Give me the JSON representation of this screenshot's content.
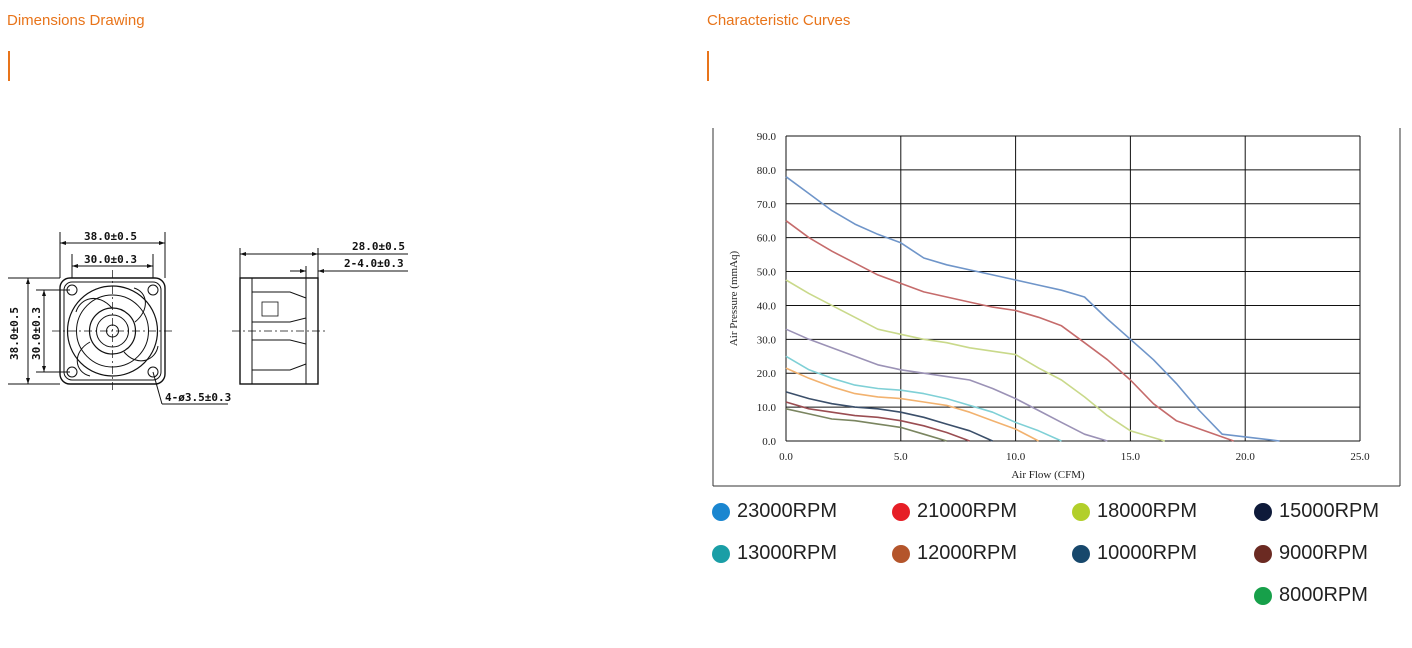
{
  "headers": {
    "dimensions": "Dimensions Drawing",
    "curves": "Characteristic Curves"
  },
  "colors": {
    "accent": "#e8741a"
  },
  "drawing": {
    "labels": {
      "front_width_outer": "38.0±0.5",
      "front_width_inner": "30.0±0.3",
      "front_height_outer": "38.0±0.5",
      "front_height_inner": "30.0±0.3",
      "hole": "4-ø3.5±0.3",
      "side_depth": "28.0±0.5",
      "side_flange": "2-4.0±0.3"
    }
  },
  "chart_data": {
    "type": "line",
    "xlabel": "Air Flow (CFM)",
    "ylabel": "Air Pressure (mmAq)",
    "xlim": [
      0,
      25
    ],
    "ylim": [
      0,
      90
    ],
    "xticks": [
      "0.0",
      "5.0",
      "10.0",
      "15.0",
      "20.0",
      "25.0"
    ],
    "yticks": [
      "0.0",
      "10.0",
      "20.0",
      "30.0",
      "40.0",
      "50.0",
      "60.0",
      "70.0",
      "80.0",
      "90.0"
    ],
    "grid": true,
    "series": [
      {
        "name": "23000RPM",
        "color": "#6f95c9",
        "points": [
          [
            0,
            78
          ],
          [
            1,
            73
          ],
          [
            2,
            68
          ],
          [
            3,
            64
          ],
          [
            4,
            61
          ],
          [
            5,
            58.5
          ],
          [
            6,
            54
          ],
          [
            7,
            52
          ],
          [
            8,
            50.5
          ],
          [
            9,
            49
          ],
          [
            10,
            47.5
          ],
          [
            11,
            46
          ],
          [
            12,
            44.5
          ],
          [
            13,
            42.5
          ],
          [
            14,
            36
          ],
          [
            15,
            30
          ],
          [
            16,
            24
          ],
          [
            17,
            17
          ],
          [
            18,
            9
          ],
          [
            19,
            2
          ],
          [
            21.5,
            0
          ]
        ]
      },
      {
        "name": "21000RPM",
        "color": "#c56b6b",
        "points": [
          [
            0,
            65
          ],
          [
            1,
            60
          ],
          [
            2,
            56
          ],
          [
            3,
            52.5
          ],
          [
            4,
            49
          ],
          [
            5,
            46.5
          ],
          [
            6,
            44
          ],
          [
            7,
            42.5
          ],
          [
            8,
            41
          ],
          [
            9,
            39.5
          ],
          [
            10,
            38.5
          ],
          [
            11,
            36.5
          ],
          [
            12,
            34
          ],
          [
            13,
            29
          ],
          [
            14,
            24
          ],
          [
            15,
            18
          ],
          [
            16,
            11
          ],
          [
            17,
            6
          ],
          [
            19.5,
            0
          ]
        ]
      },
      {
        "name": "18000RPM",
        "color": "#c9d98a",
        "points": [
          [
            0,
            47.5
          ],
          [
            1,
            43.5
          ],
          [
            2,
            40
          ],
          [
            3,
            36.5
          ],
          [
            4,
            33
          ],
          [
            5,
            31.5
          ],
          [
            6,
            30
          ],
          [
            7,
            29
          ],
          [
            8,
            27.5
          ],
          [
            9,
            26.5
          ],
          [
            10,
            25.5
          ],
          [
            11,
            21.5
          ],
          [
            12,
            18
          ],
          [
            13,
            13
          ],
          [
            14,
            7.5
          ],
          [
            15,
            3
          ],
          [
            16.5,
            0
          ]
        ]
      },
      {
        "name": "15000RPM",
        "color": "#9b92b6",
        "points": [
          [
            0,
            33
          ],
          [
            1,
            30
          ],
          [
            2,
            27.5
          ],
          [
            3,
            25
          ],
          [
            4,
            22.5
          ],
          [
            5,
            21
          ],
          [
            6,
            20
          ],
          [
            7,
            19
          ],
          [
            8,
            18
          ],
          [
            9,
            15.5
          ],
          [
            10,
            12.5
          ],
          [
            11,
            9
          ],
          [
            12,
            5.5
          ],
          [
            13,
            2
          ],
          [
            14,
            0
          ]
        ]
      },
      {
        "name": "13000RPM",
        "color": "#7fd0d6",
        "points": [
          [
            0,
            25
          ],
          [
            1,
            21
          ],
          [
            2,
            18.5
          ],
          [
            3,
            16.5
          ],
          [
            4,
            15.5
          ],
          [
            5,
            15
          ],
          [
            6,
            14
          ],
          [
            7,
            12.5
          ],
          [
            8,
            10.5
          ],
          [
            9,
            8.5
          ],
          [
            10,
            5.5
          ],
          [
            11,
            3
          ],
          [
            12,
            0
          ]
        ]
      },
      {
        "name": "12000RPM",
        "color": "#f2b26f",
        "points": [
          [
            0,
            21.5
          ],
          [
            1,
            18.5
          ],
          [
            2,
            16
          ],
          [
            3,
            14
          ],
          [
            4,
            13
          ],
          [
            5,
            12.5
          ],
          [
            6,
            11.5
          ],
          [
            7,
            10.5
          ],
          [
            8,
            8.5
          ],
          [
            9,
            6
          ],
          [
            10,
            3.5
          ],
          [
            11,
            0
          ]
        ]
      },
      {
        "name": "10000RPM",
        "color": "#3b4f6a",
        "points": [
          [
            0,
            14.5
          ],
          [
            1,
            12.5
          ],
          [
            2,
            11
          ],
          [
            3,
            10
          ],
          [
            4,
            9.5
          ],
          [
            5,
            8.5
          ],
          [
            6,
            7
          ],
          [
            7,
            5
          ],
          [
            8,
            3
          ],
          [
            9,
            0
          ]
        ]
      },
      {
        "name": "9000RPM",
        "color": "#9a4d52",
        "points": [
          [
            0,
            11.5
          ],
          [
            1,
            9.5
          ],
          [
            2,
            8.5
          ],
          [
            3,
            7.5
          ],
          [
            4,
            7
          ],
          [
            5,
            6
          ],
          [
            6,
            4.5
          ],
          [
            7,
            2.5
          ],
          [
            8,
            0
          ]
        ]
      },
      {
        "name": "8000RPM",
        "color": "#7a8560",
        "points": [
          [
            0,
            9.5
          ],
          [
            1,
            8
          ],
          [
            2,
            6.5
          ],
          [
            3,
            6
          ],
          [
            4,
            5
          ],
          [
            5,
            4
          ],
          [
            6,
            2
          ],
          [
            7,
            0
          ]
        ]
      }
    ]
  },
  "legend": {
    "items": [
      {
        "label": "23000RPM",
        "color": "#1a86d0"
      },
      {
        "label": "21000RPM",
        "color": "#e61e26"
      },
      {
        "label": "18000RPM",
        "color": "#b2cf2a"
      },
      {
        "label": "15000RPM",
        "color": "#0e1a3a"
      },
      {
        "label": "13000RPM",
        "color": "#1a9ea6"
      },
      {
        "label": "12000RPM",
        "color": "#b4552b"
      },
      {
        "label": "10000RPM",
        "color": "#17486c"
      },
      {
        "label": "9000RPM",
        "color": "#6b2a22"
      },
      {
        "label": "8000RPM",
        "color": "#17a04a"
      }
    ]
  }
}
